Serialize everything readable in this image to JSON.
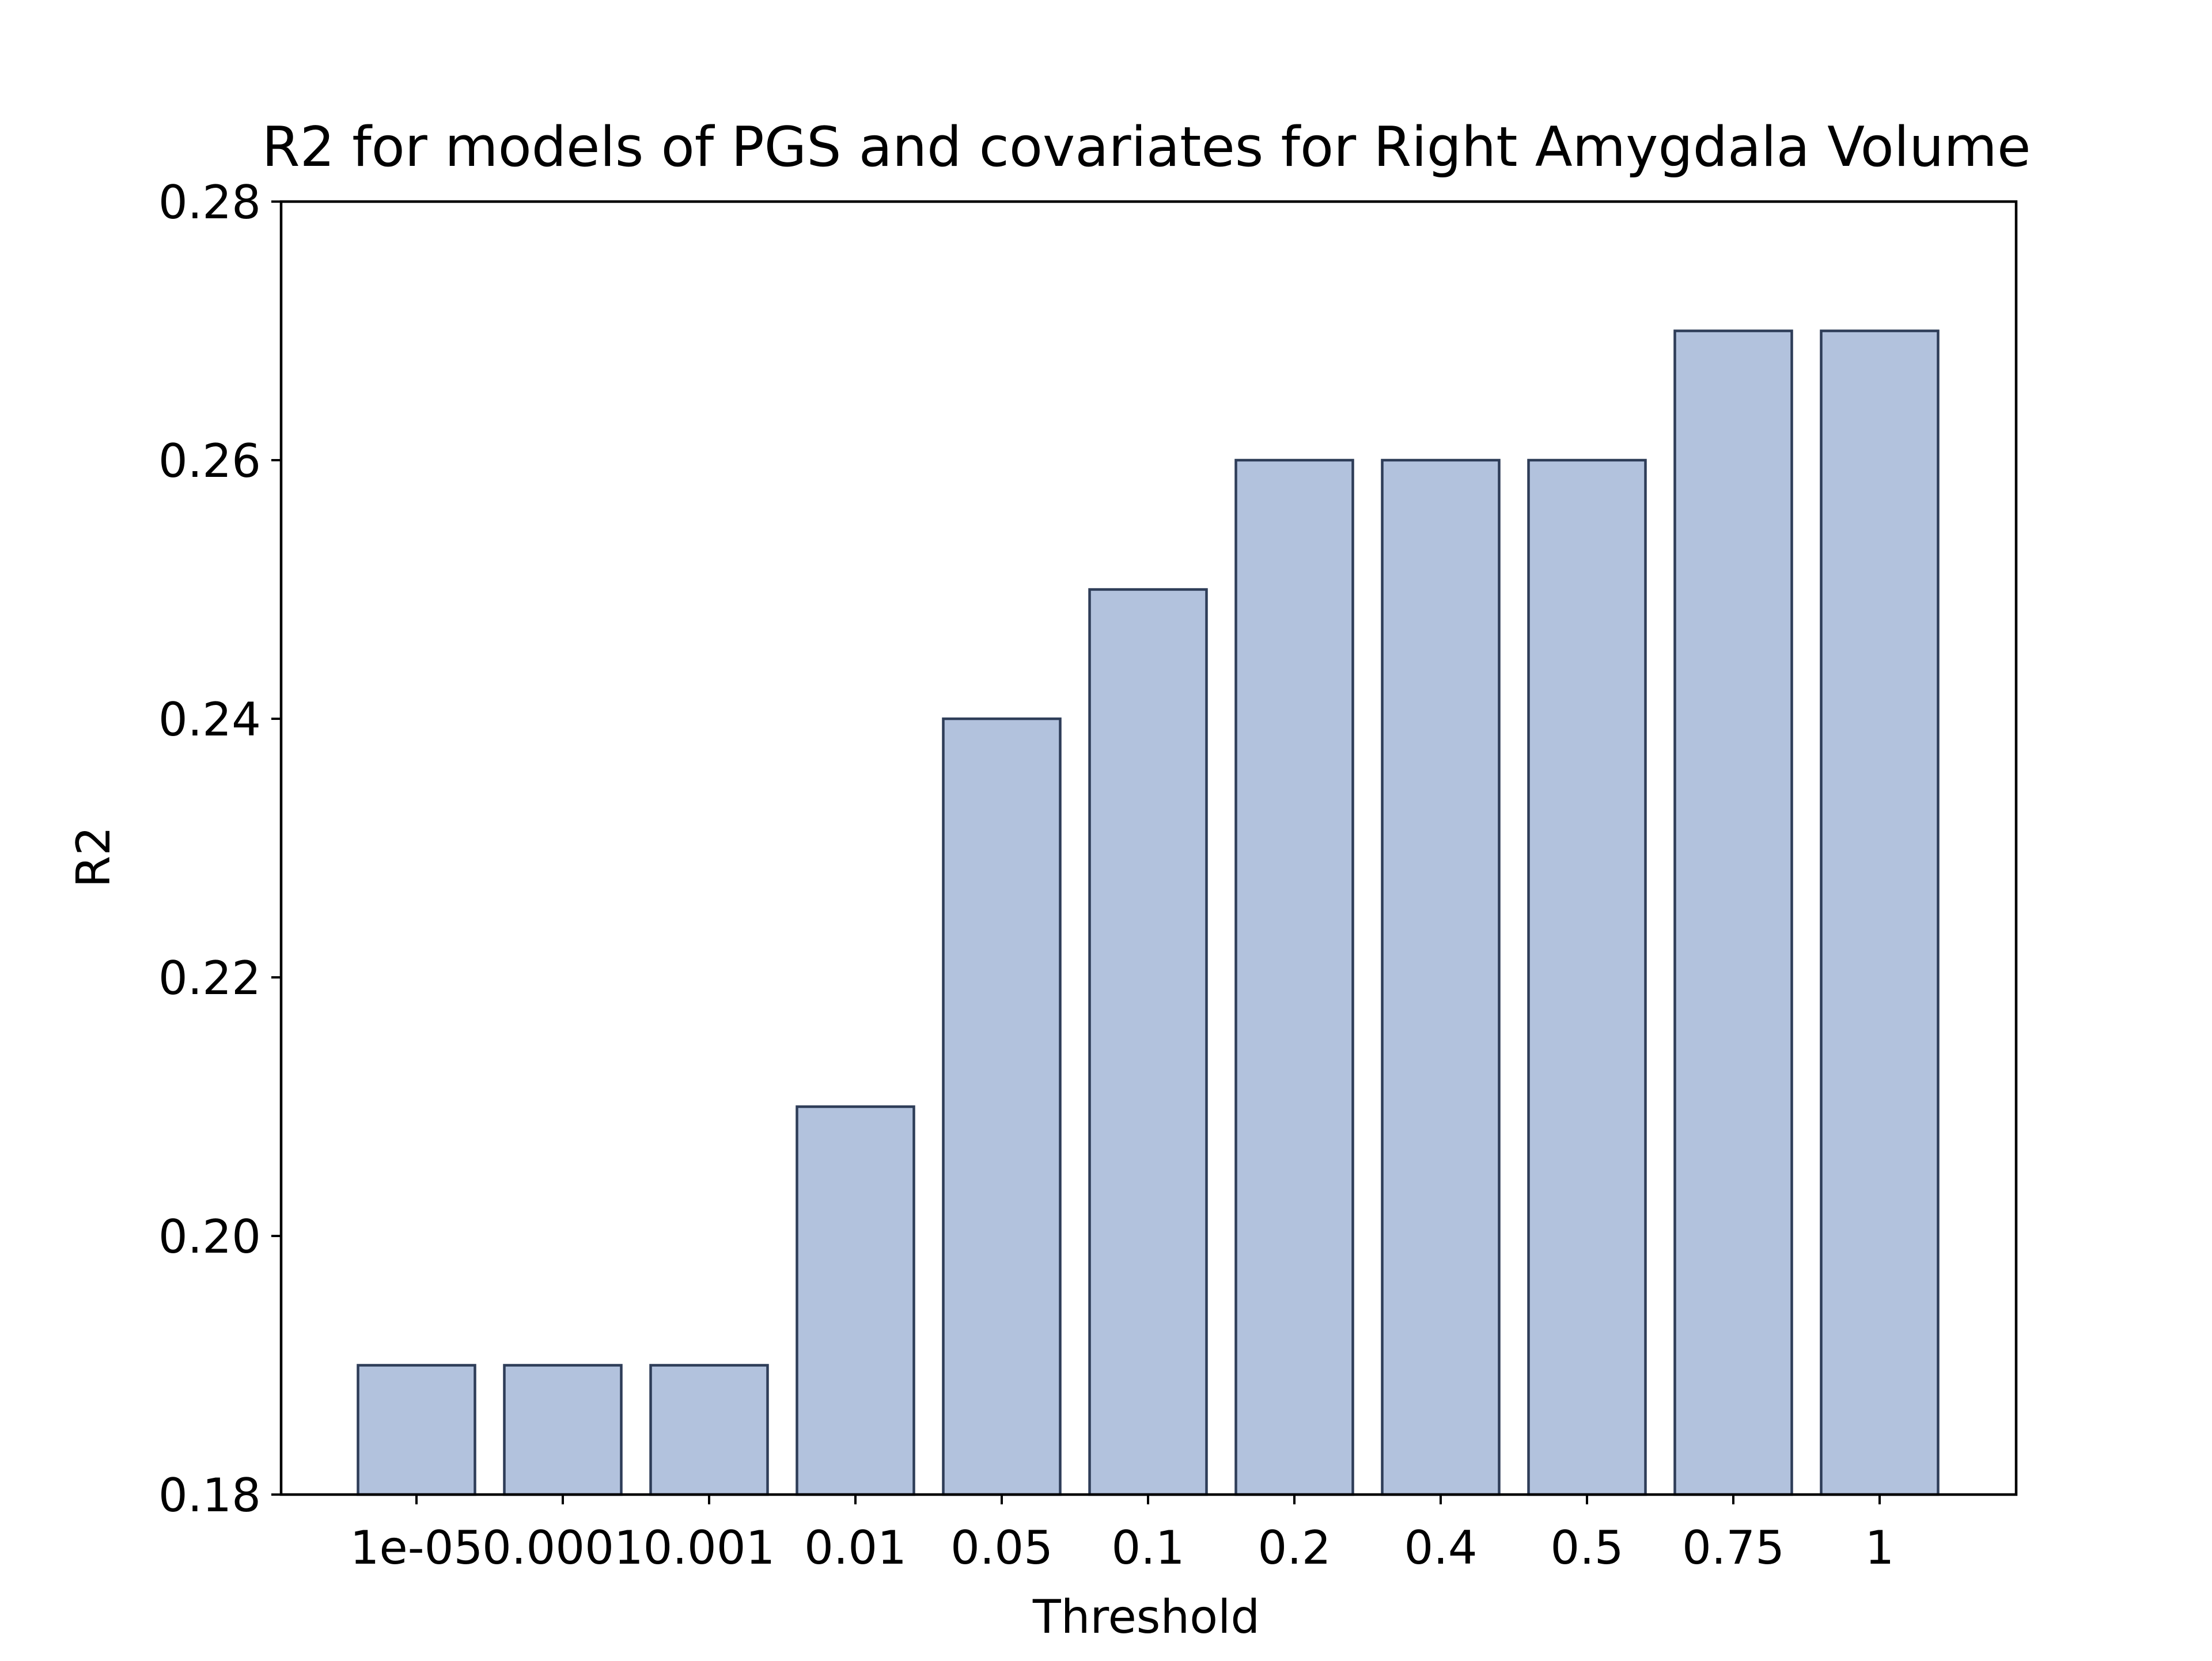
{
  "chart_data": {
    "type": "bar",
    "title": "R2 for models of PGS and covariates for Right Amygdala Volume",
    "xlabel": "Threshold",
    "ylabel": "R2",
    "categories": [
      "1e-05",
      "0.0001",
      "0.001",
      "0.01",
      "0.05",
      "0.1",
      "0.2",
      "0.4",
      "0.5",
      "0.75",
      "1"
    ],
    "values": [
      0.19,
      0.19,
      0.19,
      0.21,
      0.24,
      0.25,
      0.26,
      0.26,
      0.26,
      0.27,
      0.27
    ],
    "ylim": [
      0.18,
      0.28
    ],
    "yticks": [
      "0.18",
      "0.20",
      "0.22",
      "0.24",
      "0.26",
      "0.28"
    ],
    "grid": false,
    "legend": "none",
    "colors": {
      "bar_fill": "#b2c2dd",
      "bar_edge": "#2e3d58",
      "axis": "#000000"
    }
  }
}
